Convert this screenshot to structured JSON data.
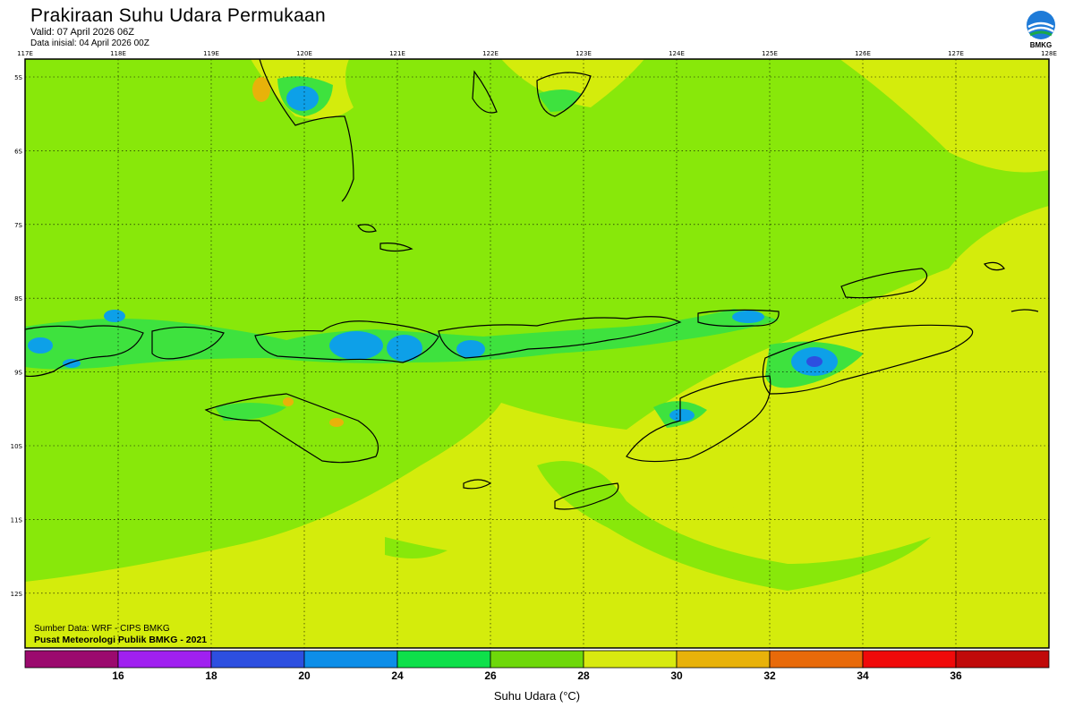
{
  "header": {
    "title": "Prakiraan Suhu Udara Permukaan",
    "valid": "Valid: 07 April 2026 06Z",
    "init": "Data inisial: 04 April 2026 00Z",
    "logo_text": "BMKG"
  },
  "map": {
    "lon_labels": [
      "117E",
      "118E",
      "119E",
      "120E",
      "121E",
      "122E",
      "123E",
      "124E",
      "125E",
      "126E",
      "127E",
      "128E"
    ],
    "lat_labels": [
      "5S",
      "6S",
      "7S",
      "8S",
      "9S",
      "10S",
      "11S",
      "12S"
    ],
    "credit_source": "Sumber Data: WRF - CIPS BMKG",
    "credit_center": "Pusat Meteorologi Publik BMKG - 2021",
    "colors": {
      "base_green": "#88e80a",
      "yellow": "#d4ec0c",
      "light_green": "#3ee23e",
      "cyan": "#0da0e8",
      "blue": "#2d4fe0",
      "orange": "#e8b20a"
    }
  },
  "colorbar": {
    "title": "Suhu Udara (°C)",
    "labels": [
      "16",
      "18",
      "20",
      "24",
      "26",
      "28",
      "30",
      "32",
      "34",
      "36"
    ],
    "colors": [
      "#9b0a6e",
      "#a020f0",
      "#2d4fe0",
      "#0d8ee8",
      "#0ee04a",
      "#6ed80a",
      "#d8ea10",
      "#e8b20a",
      "#e86a0a",
      "#f00a0a",
      "#c00a0a"
    ]
  }
}
